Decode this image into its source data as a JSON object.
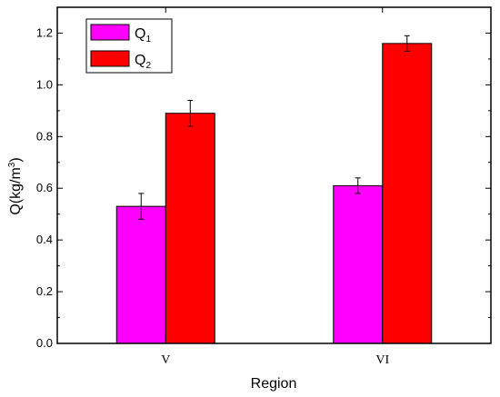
{
  "chart_data": {
    "type": "bar",
    "categories": [
      "V",
      "VI"
    ],
    "series": [
      {
        "name": "Q1",
        "name_main": "Q",
        "name_sub": "1",
        "color": "#ff00ff",
        "values": [
          0.53,
          0.61
        ],
        "errors": [
          0.05,
          0.03
        ]
      },
      {
        "name": "Q2",
        "name_main": "Q",
        "name_sub": "2",
        "color": "#ff0000",
        "values": [
          0.89,
          1.16
        ],
        "errors": [
          0.05,
          0.03
        ]
      }
    ],
    "title": "",
    "xlabel": "Region",
    "ylabel": "Q(kg/m3)",
    "ylabel_main": "Q(kg/m",
    "ylabel_sup": "3",
    "ylabel_end": ")",
    "ylim": [
      0.0,
      1.3
    ],
    "yticks": [
      "0.0",
      "0.2",
      "0.4",
      "0.6",
      "0.8",
      "1.0",
      "1.2"
    ],
    "legend_position": "top-left",
    "grid": false
  }
}
